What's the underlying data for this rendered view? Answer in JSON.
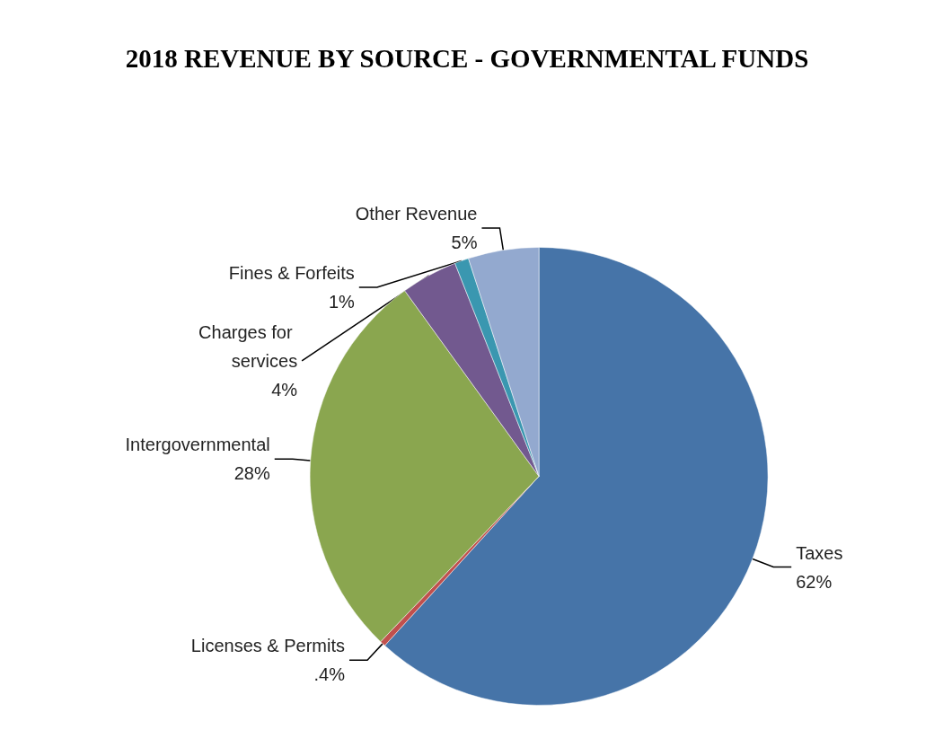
{
  "chart_data": {
    "type": "pie",
    "title": "2018 REVENUE BY SOURCE - GOVERNMENTAL FUNDS",
    "categories": [
      "Taxes",
      "Licenses & Permits",
      "Intergovernmental",
      "Charges for services",
      "Fines & Forfeits",
      "Other Revenue"
    ],
    "values": [
      62,
      0.4,
      28,
      4,
      1,
      5
    ],
    "value_labels": [
      "62%",
      ".4%",
      "28%",
      "4%",
      "1%",
      "5%"
    ],
    "colors": [
      "#4674a8",
      "#c0504d",
      "#8aa64f",
      "#72598f",
      "#3a97b0",
      "#93a9cf"
    ],
    "legend": false
  }
}
